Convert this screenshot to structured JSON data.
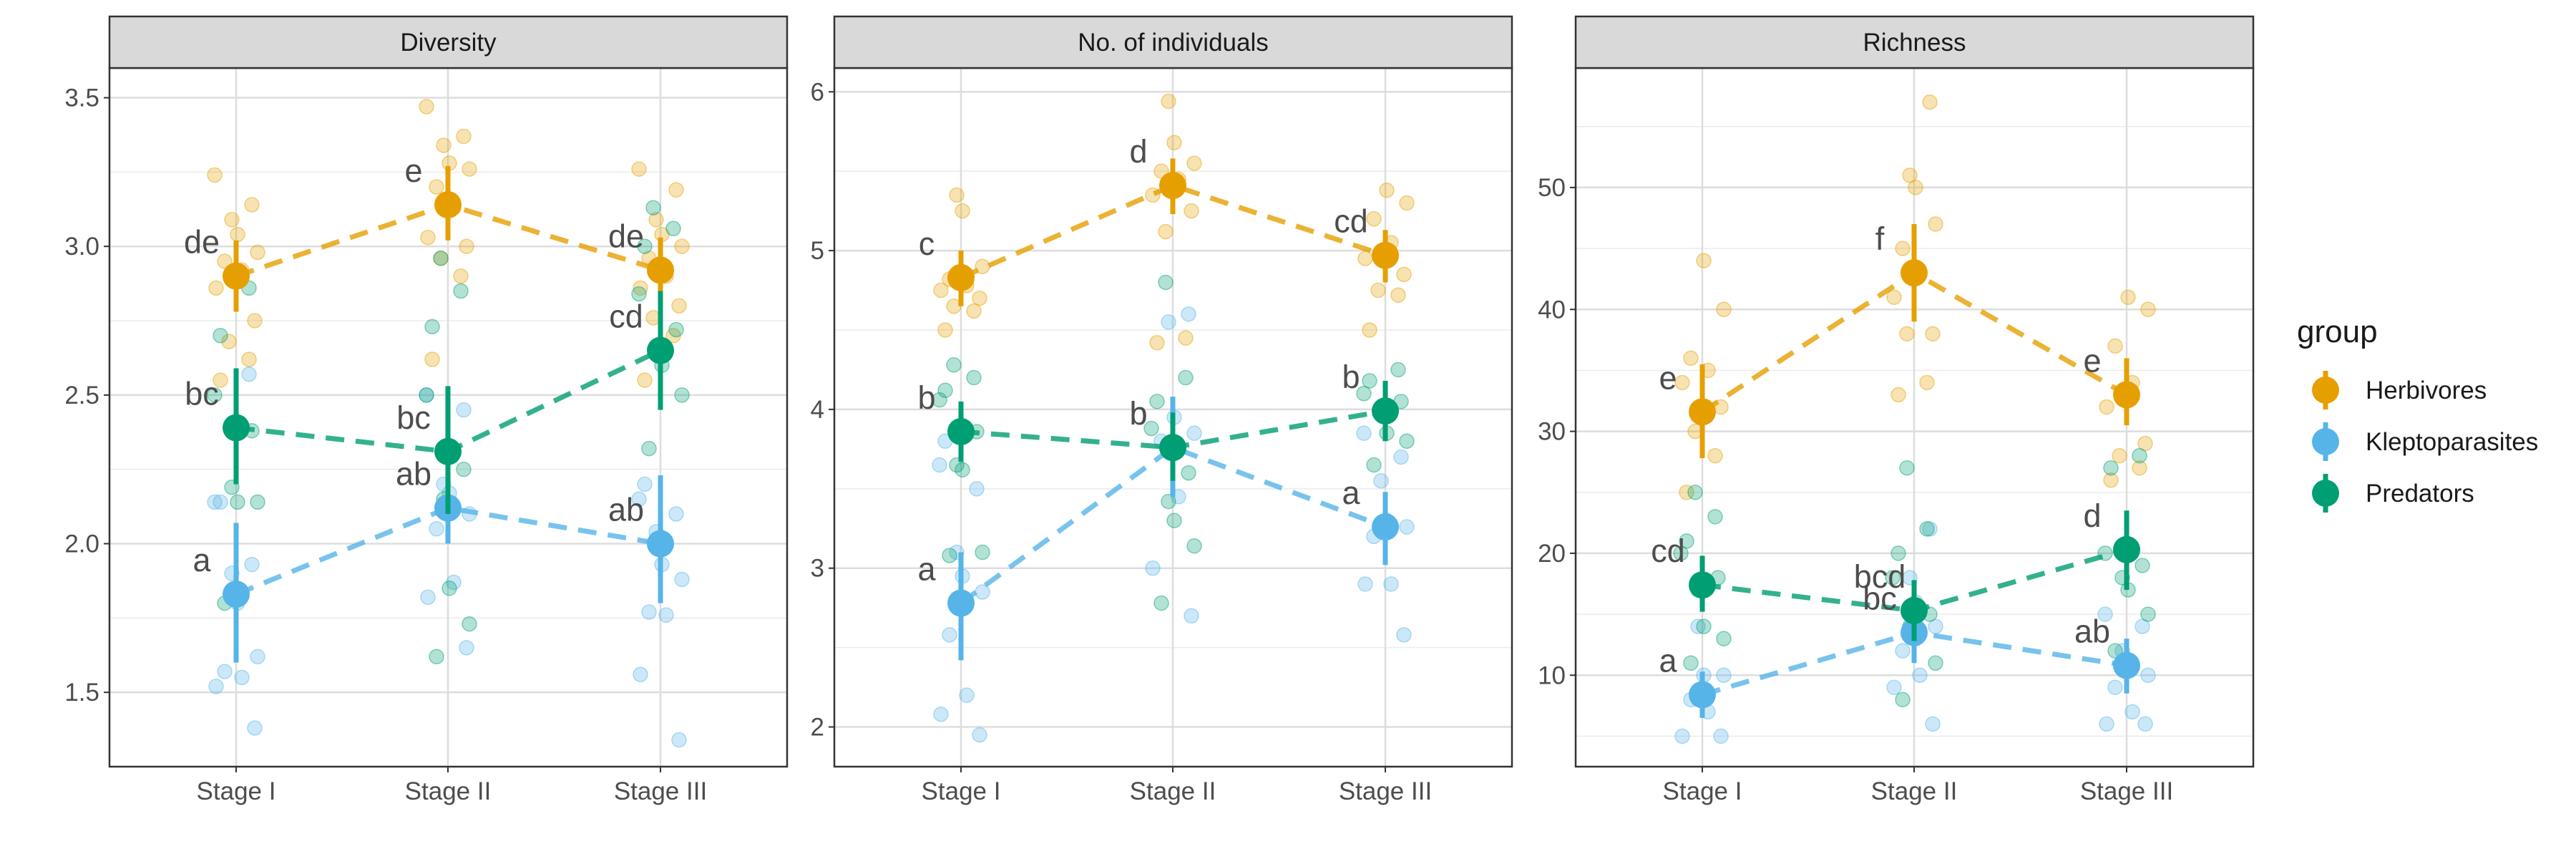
{
  "chart_data": {
    "type": "scatter",
    "x_categories": [
      "Stage I",
      "Stage II",
      "Stage III"
    ],
    "legend": {
      "title": "group",
      "position": "right",
      "items": [
        {
          "name": "Herbivores",
          "color": "#E69F00"
        },
        {
          "name": "Kleptoparasites",
          "color": "#56B4E9"
        },
        {
          "name": "Predators",
          "color": "#009E73"
        }
      ]
    },
    "grid": true,
    "panels": [
      {
        "title": "Diversity",
        "ylim": [
          1.25,
          3.6
        ],
        "yticks": [
          "1.5",
          "2.0",
          "2.5",
          "3.0",
          "3.5"
        ],
        "series": [
          {
            "name": "Herbivores",
            "mean": [
              2.9,
              3.14,
              2.92
            ],
            "lower": [
              2.78,
              3.02,
              2.8
            ],
            "upper": [
              3.02,
              3.27,
              3.03
            ],
            "letters": [
              "de",
              "e",
              "de"
            ],
            "raw": [
              [
                2.55,
                2.62,
                2.68,
                2.75,
                2.86,
                2.92,
                2.95,
                2.98,
                3.04,
                3.09,
                3.14,
                3.24
              ],
              [
                2.62,
                2.9,
                2.96,
                3.0,
                3.03,
                3.13,
                3.2,
                3.26,
                3.28,
                3.34,
                3.37,
                3.47
              ],
              [
                2.55,
                2.7,
                2.76,
                2.8,
                2.86,
                2.9,
                2.96,
                3.0,
                3.04,
                3.09,
                3.19,
                3.26
              ]
            ]
          },
          {
            "name": "Kleptoparasites",
            "mean": [
              1.83,
              2.12,
              2.0
            ],
            "lower": [
              1.6,
              2.0,
              1.8
            ],
            "upper": [
              2.07,
              2.25,
              2.23
            ],
            "letters": [
              "a",
              "ab",
              "ab"
            ],
            "raw": [
              [
                1.38,
                1.52,
                1.55,
                1.57,
                1.62,
                1.8,
                1.9,
                1.93,
                2.14,
                2.14,
                2.57
              ],
              [
                1.65,
                1.82,
                1.87,
                2.05,
                2.1,
                2.17,
                2.2,
                2.45,
                2.5
              ],
              [
                1.34,
                1.56,
                1.76,
                1.77,
                1.88,
                1.93,
                2.04,
                2.1,
                2.15,
                2.2
              ]
            ]
          },
          {
            "name": "Predators",
            "mean": [
              2.39,
              2.31,
              2.65
            ],
            "lower": [
              2.2,
              2.1,
              2.45
            ],
            "upper": [
              2.59,
              2.53,
              2.85
            ],
            "letters": [
              "bc",
              "bc",
              "cd"
            ],
            "raw": [
              [
                1.8,
                2.14,
                2.14,
                2.19,
                2.38,
                2.5,
                2.7,
                2.86
              ],
              [
                1.62,
                1.73,
                1.85,
                2.15,
                2.25,
                2.5,
                2.73,
                2.85,
                2.96
              ],
              [
                2.32,
                2.5,
                2.6,
                2.66,
                2.72,
                2.84,
                3.0,
                3.06,
                3.13
              ]
            ]
          }
        ]
      },
      {
        "title": "No. of individuals",
        "ylim": [
          1.75,
          6.15
        ],
        "yticks": [
          "2",
          "3",
          "4",
          "5",
          "6"
        ],
        "series": [
          {
            "name": "Herbivores",
            "mean": [
              4.83,
              5.41,
              4.97
            ],
            "lower": [
              4.65,
              5.23,
              4.8
            ],
            "upper": [
              5.0,
              5.58,
              5.13
            ],
            "letters": [
              "c",
              "d",
              "cd"
            ],
            "raw": [
              [
                4.5,
                4.62,
                4.65,
                4.7,
                4.75,
                4.78,
                4.82,
                4.9,
                5.25,
                5.35
              ],
              [
                4.42,
                4.45,
                5.12,
                5.25,
                5.35,
                5.45,
                5.5,
                5.55,
                5.68,
                5.94
              ],
              [
                4.5,
                4.72,
                4.75,
                4.85,
                4.95,
                5.05,
                5.2,
                5.3,
                5.38
              ]
            ]
          },
          {
            "name": "Kleptoparasites",
            "mean": [
              2.78,
              3.76,
              3.26
            ],
            "lower": [
              2.42,
              3.45,
              3.02
            ],
            "upper": [
              3.1,
              4.08,
              3.48
            ],
            "letters": [
              "a",
              "b",
              "a"
            ],
            "raw": [
              [
                1.95,
                2.08,
                2.2,
                2.58,
                2.85,
                2.95,
                3.1,
                3.5,
                3.65,
                3.8
              ],
              [
                2.7,
                3.0,
                3.45,
                3.8,
                3.85,
                3.95,
                4.55,
                4.6
              ],
              [
                2.58,
                2.9,
                2.9,
                3.2,
                3.26,
                3.3,
                3.55,
                3.7,
                3.85
              ]
            ]
          },
          {
            "name": "Predators",
            "mean": [
              3.86,
              3.76,
              3.99
            ],
            "lower": [
              3.67,
              3.55,
              3.8
            ],
            "upper": [
              4.05,
              3.98,
              4.18
            ],
            "letters": [
              "b",
              "b",
              "b"
            ],
            "raw": [
              [
                3.08,
                3.1,
                3.62,
                3.65,
                3.86,
                4.06,
                4.12,
                4.2,
                4.28
              ],
              [
                2.78,
                3.14,
                3.3,
                3.42,
                3.6,
                3.88,
                4.05,
                4.2,
                4.8
              ],
              [
                3.65,
                3.8,
                3.85,
                3.98,
                4.05,
                4.1,
                4.18,
                4.25
              ]
            ]
          }
        ]
      },
      {
        "title": "Richness",
        "ylim": [
          2.5,
          59.8
        ],
        "yticks": [
          "10",
          "20",
          "30",
          "40",
          "50"
        ],
        "series": [
          {
            "name": "Herbivores",
            "mean": [
              31.6,
              43.0,
              33.0
            ],
            "lower": [
              27.8,
              39.0,
              30.5
            ],
            "upper": [
              35.5,
              47.0,
              36.0
            ],
            "letters": [
              "e",
              "f",
              "e"
            ],
            "raw": [
              [
                25,
                28,
                30,
                32,
                34,
                35,
                36,
                40,
                44
              ],
              [
                33,
                34,
                38,
                38,
                41,
                43,
                45,
                47,
                50,
                51,
                57
              ],
              [
                26,
                27,
                28,
                29,
                32,
                34,
                37,
                40,
                41
              ]
            ]
          },
          {
            "name": "Kleptoparasites",
            "mean": [
              8.4,
              13.5,
              10.8
            ],
            "lower": [
              6.5,
              11.0,
              8.5
            ],
            "upper": [
              10.3,
              16.0,
              13.0
            ],
            "letters": [
              "a",
              "bc",
              "ab"
            ],
            "raw": [
              [
                5,
                5,
                7,
                8,
                10,
                10,
                14
              ],
              [
                6,
                9,
                10,
                12,
                14,
                16,
                18,
                22
              ],
              [
                6,
                6,
                7,
                9,
                10,
                11,
                12,
                14,
                15
              ]
            ]
          },
          {
            "name": "Predators",
            "mean": [
              17.4,
              15.3,
              20.3
            ],
            "lower": [
              15.2,
              12.8,
              17.0
            ],
            "upper": [
              19.8,
              17.8,
              23.5
            ],
            "letters": [
              "cd",
              "bcd",
              "d"
            ],
            "raw": [
              [
                11,
                13,
                14,
                17,
                18,
                20,
                21,
                23,
                25
              ],
              [
                8,
                11,
                13,
                14,
                15,
                18,
                20,
                22,
                27
              ],
              [
                12,
                15,
                17,
                18,
                19,
                20,
                27,
                28
              ]
            ]
          }
        ]
      }
    ]
  }
}
